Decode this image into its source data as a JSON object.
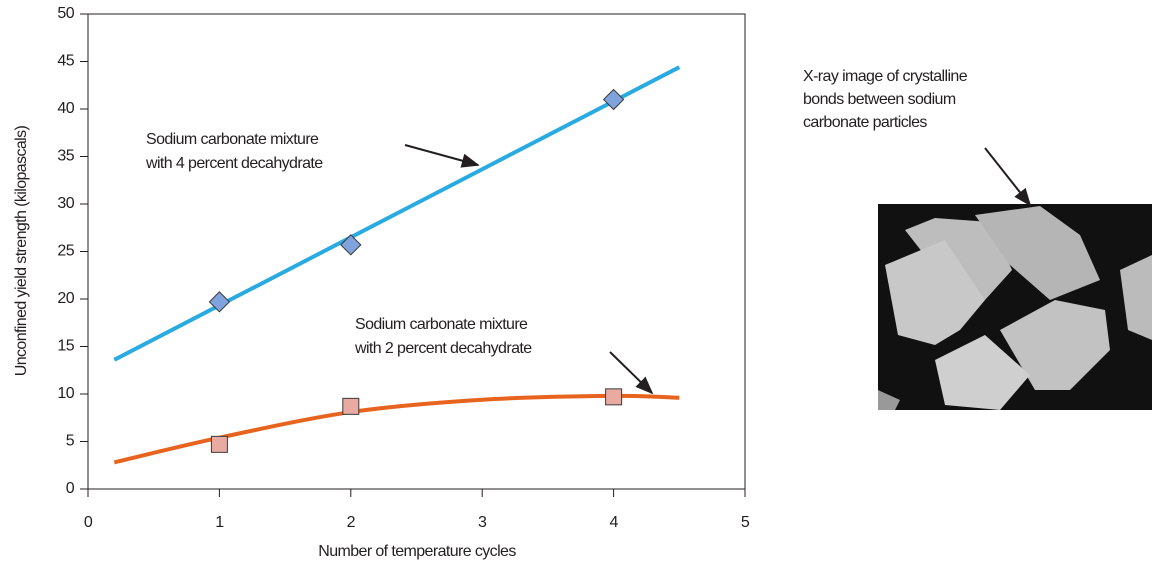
{
  "chart_data": {
    "type": "scatter",
    "x_label": "Number of temperature cycles",
    "y_label": "Unconfined yield strength (kilopascals)",
    "xlim": [
      0,
      5
    ],
    "xticks": [
      0,
      1,
      2,
      3,
      4,
      5
    ],
    "ylim": [
      0,
      50
    ],
    "yticks": [
      0,
      5,
      10,
      15,
      20,
      25,
      30,
      35,
      40,
      45,
      50
    ],
    "series": [
      {
        "marker": "diamond",
        "color": "#7fa3dc",
        "x": [
          1,
          2,
          4
        ],
        "values": [
          19.7,
          25.7,
          41
        ]
      },
      {
        "marker": "square",
        "color": "#e9aaa2",
        "x": [
          1,
          2,
          4
        ],
        "values": [
          4.7,
          8.7,
          9.7
        ]
      }
    ],
    "fits": [
      {
        "color": "#29abe2",
        "x": [
          0.2,
          4.5
        ],
        "values": [
          13.6,
          44.4
        ]
      },
      {
        "color": "#e8641e",
        "x": [
          0.2,
          1,
          2,
          3,
          4,
          4.5
        ],
        "values": [
          2.8,
          5.4,
          8.1,
          9.4,
          9.8,
          9.6
        ]
      }
    ],
    "annotations": [
      {
        "lines": [
          "Sodium carbonate mixture",
          "with 4 percent decahydrate"
        ]
      },
      {
        "lines": [
          "Sodium carbonate mixture",
          "with 2 percent decahydrate"
        ]
      }
    ]
  },
  "image": {
    "caption": [
      "X-ray image of crystalline",
      "bonds between sodium",
      "carbonate particles"
    ]
  }
}
